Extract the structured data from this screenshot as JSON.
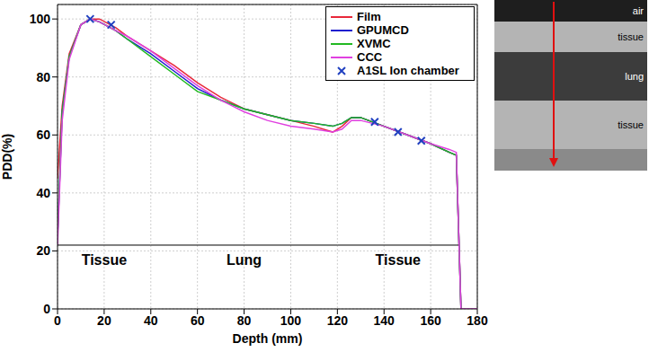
{
  "chart_data": {
    "type": "line",
    "x_label": "Depth (mm)",
    "y_label": "PDD(%)",
    "xlim": [
      0,
      180
    ],
    "xticks": [
      0,
      20,
      40,
      60,
      80,
      100,
      120,
      140,
      160,
      180
    ],
    "ylim": [
      0,
      105
    ],
    "yticks": [
      0,
      20,
      40,
      60,
      80,
      100
    ],
    "grid": true,
    "legend": "upper right",
    "x": [
      0,
      2,
      5,
      10,
      14,
      18,
      25,
      30,
      40,
      50,
      60,
      70,
      80,
      90,
      100,
      110,
      118,
      122,
      126,
      130,
      140,
      150,
      160,
      168,
      171,
      173,
      180
    ],
    "series": [
      {
        "name": "Film",
        "type": "line",
        "color": "#e8283a",
        "values": [
          45,
          70,
          88,
          98,
          100,
          100,
          97,
          94,
          89,
          84,
          78,
          73,
          69,
          67,
          65,
          63,
          61,
          63,
          66,
          66,
          63,
          60,
          57,
          54,
          53,
          0,
          null
        ]
      },
      {
        "name": "GPUMCD",
        "type": "line",
        "color": "#1f1fcf",
        "values": [
          25,
          68,
          87,
          98,
          100,
          99,
          96,
          93,
          88,
          82,
          76,
          72,
          69,
          67,
          65,
          64,
          63,
          64,
          66,
          66,
          63,
          60,
          57,
          54,
          53,
          0,
          null
        ]
      },
      {
        "name": "XVMC",
        "type": "line",
        "color": "#22b922",
        "values": [
          25,
          68,
          87,
          98,
          100,
          99,
          96,
          93,
          87,
          81,
          75,
          72,
          69,
          67,
          65,
          64,
          63,
          64,
          66,
          66,
          63,
          60,
          57,
          54,
          53,
          0,
          null
        ]
      },
      {
        "name": "CCC",
        "type": "line",
        "color": "#e040e0",
        "values": [
          22,
          65,
          86,
          98,
          100,
          99,
          96,
          94,
          89,
          83,
          77,
          72,
          68,
          65,
          63,
          62,
          61,
          62,
          65,
          65,
          63,
          60,
          57,
          55,
          54,
          0,
          0
        ]
      },
      {
        "name": "A1SL Ion chamber",
        "type": "scatter",
        "marker": "x",
        "color": "#2040c0",
        "x": [
          14,
          23,
          136,
          146,
          156
        ],
        "values": [
          100,
          98,
          64.5,
          61,
          58
        ]
      }
    ],
    "regions": [
      {
        "label": "Tissue",
        "start": 0,
        "end": 40,
        "y": 22
      },
      {
        "label": "Lung",
        "start": 40,
        "end": 120,
        "y": 22
      },
      {
        "label": "Tissue",
        "start": 120,
        "end": 172,
        "y": 22
      }
    ]
  },
  "phantom": {
    "layers": [
      "air",
      "tissue",
      "lung",
      "tissue"
    ]
  }
}
